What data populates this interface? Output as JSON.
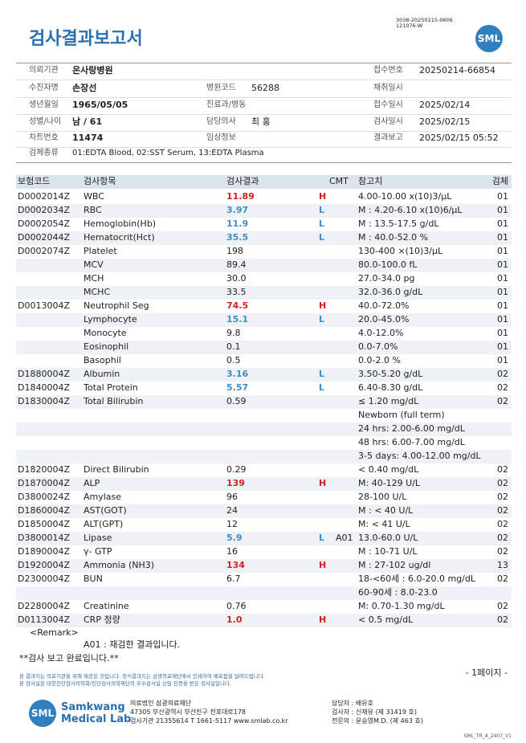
{
  "header": {
    "title": "검사결과보고서",
    "doc_code": [
      "3038-20250215-0606",
      "121076-W"
    ],
    "logo": "SML"
  },
  "patient_info": [
    {
      "left": {
        "label": "의뢰기관",
        "value": "온사랑병원"
      },
      "right": {
        "label": "접수번호",
        "value": "20250214-66854"
      }
    },
    {
      "left": {
        "label": "수진자명",
        "value": "손장선"
      },
      "middle": {
        "label": "병원코드",
        "value": "56288"
      },
      "right": {
        "label": "채취일시"
      }
    },
    {
      "left": {
        "label": "생년월일",
        "value": "1965/05/05"
      },
      "middle": {
        "label": "진료과/병동"
      },
      "right": {
        "label": "접수일시",
        "value": "2025/02/14"
      }
    },
    {
      "left": {
        "label": "성별/나이",
        "value": "남 / 61"
      },
      "middle": {
        "label": "담당의사",
        "value": "최 홍"
      },
      "right": {
        "label": "검사일시",
        "value": "2025/02/15"
      }
    },
    {
      "left": {
        "label": "차트번호",
        "value": "11474"
      },
      "middle": {
        "label": "임상정보"
      },
      "right": {
        "label": "결과보고",
        "value": "2025/02/15 05:52"
      }
    }
  ],
  "specimen_info": {
    "label": "검체종류",
    "value": "01:EDTA Blood, 02:SST Serum, 13:EDTA Plasma"
  },
  "results": {
    "columns": {
      "code": "보험코드",
      "item": "검사항목",
      "result": "검사결과",
      "cmt": "CMT",
      "ref": "참고치",
      "specimen": "검체"
    },
    "rows": [
      {
        "code": "D0002014Z",
        "item": "WBC",
        "result": "11.89",
        "flag": "H",
        "ref": "4.00-10.00 x(10)3/μL",
        "specimen": "01"
      },
      {
        "code": "D0002034Z",
        "item": "RBC",
        "result": "3.97",
        "flag": "L",
        "ref": "M : 4.20-6.10 x(10)6/μL",
        "specimen": "01"
      },
      {
        "code": "D0002054Z",
        "item": "Hemoglobin(Hb)",
        "result": "11.9",
        "flag": "L",
        "ref": "M : 13.5-17.5 g/dL",
        "specimen": "01"
      },
      {
        "code": "D0002044Z",
        "item": "Hematocrit(Hct)",
        "result": "35.5",
        "flag": "L",
        "ref": "M : 40.0-52.0 %",
        "specimen": "01"
      },
      {
        "code": "D0002074Z",
        "item": "Platelet",
        "result": "198",
        "ref": "130-400 ×(10)3/μL",
        "specimen": "01"
      },
      {
        "item": "MCV",
        "result": "89.4",
        "ref": "80.0-100.0 fL",
        "specimen": "01"
      },
      {
        "item": "MCH",
        "result": "30.0",
        "ref": "27.0-34.0 pg",
        "specimen": "01"
      },
      {
        "item": "MCHC",
        "result": "33.5",
        "ref": "32.0-36.0 g/dL",
        "specimen": "01"
      },
      {
        "code": "D0013004Z",
        "item": "Neutrophil Seg",
        "result": "74.5",
        "flag": "H",
        "ref": "40.0-72.0%",
        "specimen": "01"
      },
      {
        "item": "Lymphocyte",
        "result": "15.1",
        "flag": "L",
        "ref": "20.0-45.0%",
        "specimen": "01"
      },
      {
        "item": "Monocyte",
        "result": "9.8",
        "ref": "4.0-12.0%",
        "specimen": "01"
      },
      {
        "item": "Eosinophil",
        "result": "0.1",
        "ref": "0.0-7.0%",
        "specimen": "01"
      },
      {
        "item": "Basophil",
        "result": "0.5",
        "ref": "0.0-2.0 %",
        "specimen": "01"
      },
      {
        "code": "D1880004Z",
        "item": "Albumin",
        "result": "3.16",
        "flag": "L",
        "ref": "3.50-5.20 g/dL",
        "specimen": "02"
      },
      {
        "code": "D1840004Z",
        "item": "Total Protein",
        "result": "5.57",
        "flag": "L",
        "ref": "6.40-8.30 g/dL",
        "specimen": "02"
      },
      {
        "code": "D1830004Z",
        "item": "Total Bilirubin",
        "result": "0.59",
        "ref": "≤ 1.20 mg/dL",
        "specimen": "02"
      },
      {
        "ref": "Newborn (full term)"
      },
      {
        "ref": "24 hrs: 2.00-6.00 mg/dL"
      },
      {
        "ref": "48 hrs: 6.00-7.00 mg/dL"
      },
      {
        "ref": "3-5 days: 4.00-12.00 mg/dL"
      },
      {
        "code": "D1820004Z",
        "item": "Direct Bilirubin",
        "result": "0.29",
        "ref": "< 0.40 mg/dL",
        "specimen": "02"
      },
      {
        "code": "D1870004Z",
        "item": "ALP",
        "result": "139",
        "flag": "H",
        "ref": "M: 40-129 U/L",
        "specimen": "02"
      },
      {
        "code": "D3800024Z",
        "item": "Amylase",
        "result": "96",
        "ref": "28-100 U/L",
        "specimen": "02"
      },
      {
        "code": "D1860004Z",
        "item": "AST(GOT)",
        "result": "24",
        "ref": "M : < 40 U/L",
        "specimen": "02"
      },
      {
        "code": "D1850004Z",
        "item": "ALT(GPT)",
        "result": "12",
        "ref": "M: < 41 U/L",
        "specimen": "02"
      },
      {
        "code": "D3800014Z",
        "item": "Lipase",
        "result": "5.9",
        "flag": "L",
        "cmt": "A01",
        "ref": "13.0-60.0 U/L",
        "specimen": "02"
      },
      {
        "code": "D1890004Z",
        "item": "γ- GTP",
        "result": "16",
        "ref": "M : 10-71 U/L",
        "specimen": "02"
      },
      {
        "code": "D1920004Z",
        "item": "Ammonia (NH3)",
        "result": "134",
        "flag": "H",
        "ref": "M : 27-102 ug/dl",
        "specimen": "13"
      },
      {
        "code": "D2300004Z",
        "item": "BUN",
        "result": "6.7",
        "ref": "18-<60세 : 6.0-20.0 mg/dL",
        "specimen": "02"
      },
      {
        "ref": "60-90세 : 8.0-23.0"
      },
      {
        "code": "D2280004Z",
        "item": "Creatinine",
        "result": "0.76",
        "ref": "M: 0.70-1.30 mg/dL",
        "specimen": "02"
      },
      {
        "code": "D0113004Z",
        "item": "CRP 정량",
        "result": "1.0",
        "flag": "H",
        "ref": "< 0.5 mg/dL",
        "specimen": "02"
      }
    ]
  },
  "remarks": {
    "title": "<Remark>",
    "note": "A01 : 재검한 결과입니다.",
    "status": "**검사 보고 완료입니다.**"
  },
  "page_label": "- 1페이지 -",
  "notices": [
    "본 결과지는 의료기관을 위해 제공된 것입니다. 정식결과지는 삼광의료재단에서 인쇄하여 배포됨을 알려드립니다.",
    "본 검사실은 대한진단검사의학회/진단검사의학재단의 우수검사실 신임 인증을 받은 검사실입니다."
  ],
  "footer": {
    "logo": "SML",
    "brand": [
      "Samkwang",
      "Medical Lab"
    ],
    "address": [
      "의료법인 삼광의료재단",
      "47305 부산광역시 부산진구 전포대로178",
      "검사기관 21355614 T 1661-5117 www.smlab.co.kr"
    ],
    "staff": [
      "담당자 : 배유호",
      "검사자 : 신재유 (제 31419 호)",
      "전문의 : 윤승영M.D. (제 463 호)"
    ],
    "form_code": "SML_TR_A_2407_V1"
  }
}
